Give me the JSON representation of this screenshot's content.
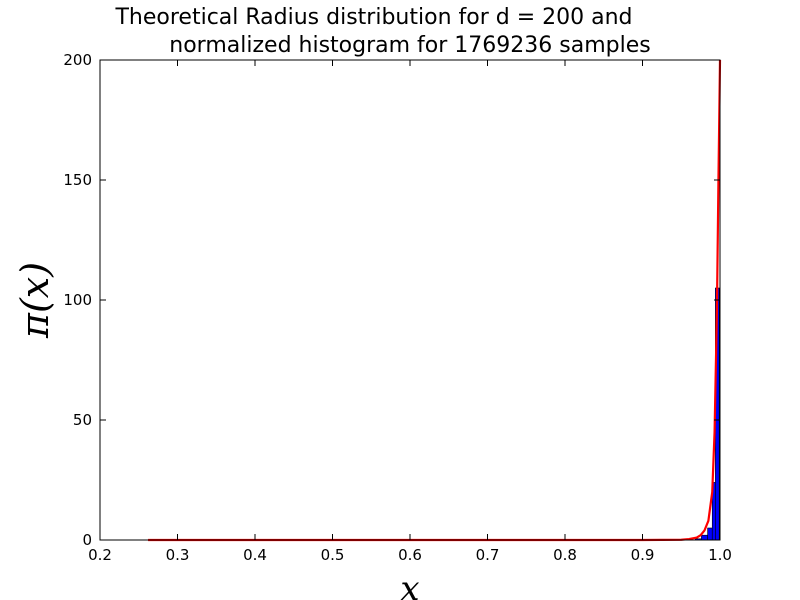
{
  "chart_data": {
    "type": "bar",
    "title_line1": "Theoretical Radius distribution for d = 200 and",
    "title_line2": "normalized histogram for 1769236 samples",
    "xlabel": "x",
    "ylabel": "π(x)",
    "xlim": [
      0.2,
      1.0
    ],
    "ylim": [
      0,
      200
    ],
    "xticks": [
      0.2,
      0.3,
      0.4,
      0.5,
      0.6,
      0.7,
      0.8,
      0.9,
      1.0
    ],
    "xtick_labels": [
      "0.2",
      "0.3",
      "0.4",
      "0.5",
      "0.6",
      "0.7",
      "0.8",
      "0.9",
      "1.0"
    ],
    "yticks": [
      0,
      50,
      100,
      150,
      200
    ],
    "ytick_labels": [
      "0",
      "50",
      "100",
      "150",
      "200"
    ],
    "grid": false,
    "bar_color": "#0000ff",
    "line_color": "#ff0000",
    "series": [
      {
        "type": "histogram",
        "bins": [
          {
            "x0": 0.968,
            "x1": 0.976,
            "value": 0.5
          },
          {
            "x0": 0.976,
            "x1": 0.984,
            "value": 2.0
          },
          {
            "x0": 0.984,
            "x1": 0.99,
            "value": 5.0
          },
          {
            "x0": 0.99,
            "x1": 0.994,
            "value": 24.0
          },
          {
            "x0": 0.994,
            "x1": 0.999,
            "value": 105.0
          }
        ]
      },
      {
        "type": "line",
        "x": [
          0.262,
          0.9,
          0.95,
          0.96,
          0.97,
          0.975,
          0.98,
          0.985,
          0.99,
          0.993,
          0.996,
          0.998,
          1.0
        ],
        "y": [
          0,
          0,
          0.1,
          0.4,
          1.0,
          2.0,
          4.0,
          8.0,
          20.0,
          45.0,
          95.0,
          150.0,
          200.0
        ]
      }
    ]
  }
}
